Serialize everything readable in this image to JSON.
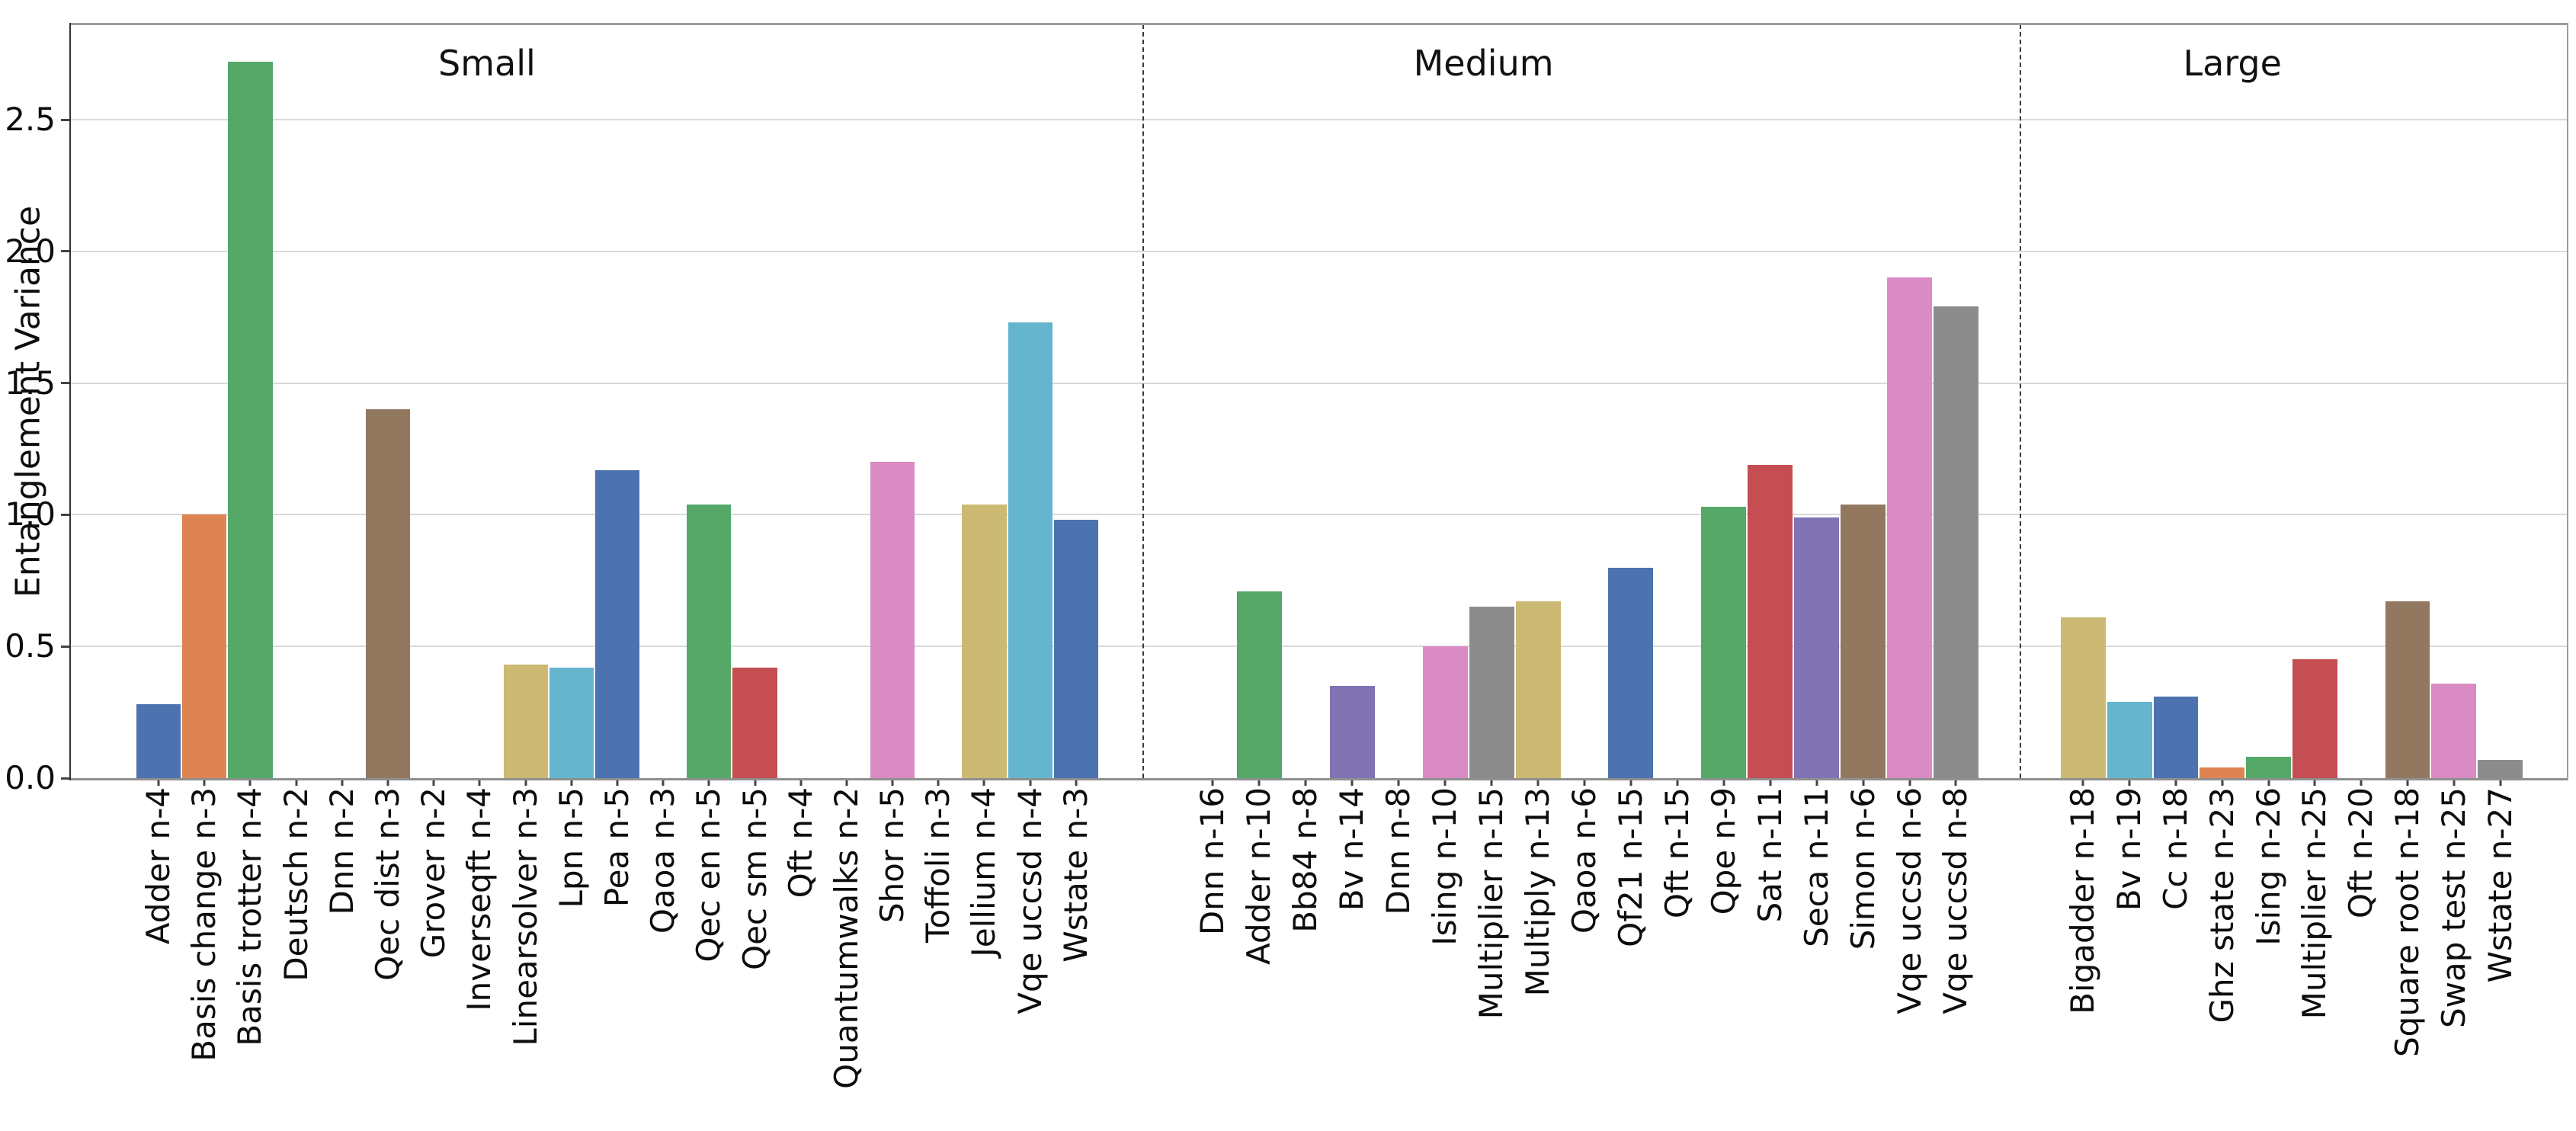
{
  "chart_data": {
    "type": "bar",
    "title": "",
    "ylabel": "Entanglement Variance",
    "ylim": [
      0,
      2.86
    ],
    "yticks": [
      0.0,
      0.5,
      1.0,
      1.5,
      2.0,
      2.5
    ],
    "y_tick_labels": [
      "0.0",
      "0.5",
      "1.0",
      "1.5",
      "2.0",
      "2.5"
    ],
    "grid": "horizontal-gridlines-on",
    "legend": "none",
    "palette": [
      "#4C72B0",
      "#DD8452",
      "#55A868",
      "#C44E52",
      "#8172B3",
      "#937860",
      "#DA8BC3",
      "#8C8C8C",
      "#CCB974",
      "#64B5CD"
    ],
    "facets": [
      {
        "name": "Small",
        "categories": [
          "Adder n-4",
          "Basis change n-3",
          "Basis trotter n-4",
          "Deutsch n-2",
          "Dnn n-2",
          "Qec dist n-3",
          "Grover n-2",
          "Inverseqft n-4",
          "Linearsolver n-3",
          "Lpn n-5",
          "Pea n-5",
          "Qaoa n-3",
          "Qec en n-5",
          "Qec sm n-5",
          "Qft n-4",
          "Quantumwalks n-2",
          "Shor n-5",
          "Toffoli n-3",
          "Jellium n-4",
          "Vqe uccsd n-4",
          "Wstate n-3"
        ],
        "values": [
          0.28,
          1.0,
          2.72,
          0,
          0,
          1.4,
          0,
          0,
          0.43,
          0.42,
          1.17,
          0,
          1.04,
          0.42,
          0,
          0,
          1.2,
          0,
          1.04,
          1.73,
          0.98
        ],
        "colors": [
          "#4C72B0",
          "#DD8452",
          "#55A868",
          "#C44E52",
          "#8172B3",
          "#937860",
          "#DA8BC3",
          "#8C8C8C",
          "#CCB974",
          "#64B5CD",
          "#4C72B0",
          "#DD8452",
          "#55A868",
          "#C44E52",
          "#8172B3",
          "#937860",
          "#DA8BC3",
          "#8C8C8C",
          "#CCB974",
          "#64B5CD",
          "#4C72B0"
        ]
      },
      {
        "name": "Medium",
        "categories": [
          "Dnn n-16",
          "Adder n-10",
          "Bb84 n-8",
          "Bv n-14",
          "Dnn n-8",
          "Ising n-10",
          "Multiplier n-15",
          "Multiply n-13",
          "Qaoa n-6",
          "Qf21 n-15",
          "Qft n-15",
          "Qpe n-9",
          "Sat n-11",
          "Seca n-11",
          "Simon n-6",
          "Vqe uccsd n-6",
          "Vqe uccsd n-8"
        ],
        "values": [
          0,
          0.71,
          0,
          0.35,
          0,
          0.5,
          0.65,
          0.67,
          0,
          0.8,
          0,
          1.03,
          1.19,
          0.99,
          1.04,
          1.9,
          1.79
        ],
        "colors": [
          "#DD8452",
          "#55A868",
          "#C44E52",
          "#8172B3",
          "#937860",
          "#DA8BC3",
          "#8C8C8C",
          "#CCB974",
          "#64B5CD",
          "#4C72B0",
          "#DD8452",
          "#55A868",
          "#C44E52",
          "#8172B3",
          "#937860",
          "#DA8BC3",
          "#8C8C8C"
        ]
      },
      {
        "name": "Large",
        "categories": [
          "Bigadder n-18",
          "Bv n-19",
          "Cc n-18",
          "Ghz state n-23",
          "Ising n-26",
          "Multiplier n-25",
          "Qft n-20",
          "Square root n-18",
          "Swap test n-25",
          "Wstate n-27"
        ],
        "values": [
          0.61,
          0.29,
          0.31,
          0.04,
          0.08,
          0.45,
          0,
          0.67,
          0.36,
          0.07
        ],
        "colors": [
          "#CCB974",
          "#64B5CD",
          "#4C72B0",
          "#DD8452",
          "#55A868",
          "#C44E52",
          "#8172B3",
          "#937860",
          "#DA8BC3",
          "#8C8C8C"
        ]
      }
    ]
  }
}
